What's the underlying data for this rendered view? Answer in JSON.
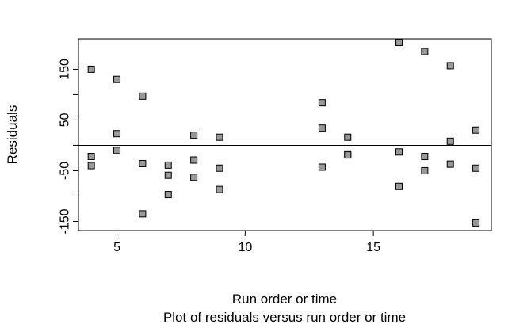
{
  "chart_data": {
    "type": "scatter",
    "xlabel": "Run order or time",
    "ylabel": "Residuals",
    "subtitle": "Plot of residuals versus run order or time",
    "xlim": [
      3.5,
      19.6
    ],
    "ylim": [
      -168,
      210
    ],
    "xticks": [
      5,
      10,
      15
    ],
    "yticks": [
      -150,
      -100,
      -50,
      0,
      50,
      100,
      150
    ],
    "ytick_labels": [
      "-150",
      "",
      "-50",
      "",
      "50",
      "",
      "150"
    ],
    "reference_line_y": 0,
    "grid": false,
    "marker_color": "#999999",
    "marker_edge_color": "#000000",
    "points": [
      {
        "x": 4,
        "y": 150
      },
      {
        "x": 4,
        "y": -22
      },
      {
        "x": 4,
        "y": -40
      },
      {
        "x": 5,
        "y": 130
      },
      {
        "x": 5,
        "y": 23
      },
      {
        "x": 5,
        "y": -10
      },
      {
        "x": 6,
        "y": 97
      },
      {
        "x": 6,
        "y": -36
      },
      {
        "x": 6,
        "y": -135
      },
      {
        "x": 7,
        "y": -39
      },
      {
        "x": 7,
        "y": -59
      },
      {
        "x": 7,
        "y": -97
      },
      {
        "x": 8,
        "y": 20
      },
      {
        "x": 8,
        "y": -29
      },
      {
        "x": 8,
        "y": -63
      },
      {
        "x": 9,
        "y": 16
      },
      {
        "x": 9,
        "y": -45
      },
      {
        "x": 9,
        "y": -87
      },
      {
        "x": 13,
        "y": 84
      },
      {
        "x": 13,
        "y": 34
      },
      {
        "x": 13,
        "y": -43
      },
      {
        "x": 14,
        "y": 16
      },
      {
        "x": 14,
        "y": -17
      },
      {
        "x": 14,
        "y": -19
      },
      {
        "x": 16,
        "y": 203
      },
      {
        "x": 16,
        "y": -13
      },
      {
        "x": 16,
        "y": -81
      },
      {
        "x": 17,
        "y": 185
      },
      {
        "x": 17,
        "y": -22
      },
      {
        "x": 17,
        "y": -50
      },
      {
        "x": 18,
        "y": 157
      },
      {
        "x": 18,
        "y": 8
      },
      {
        "x": 18,
        "y": -37
      },
      {
        "x": 19,
        "y": 30
      },
      {
        "x": 19,
        "y": -45
      },
      {
        "x": 19,
        "y": -153
      }
    ]
  }
}
